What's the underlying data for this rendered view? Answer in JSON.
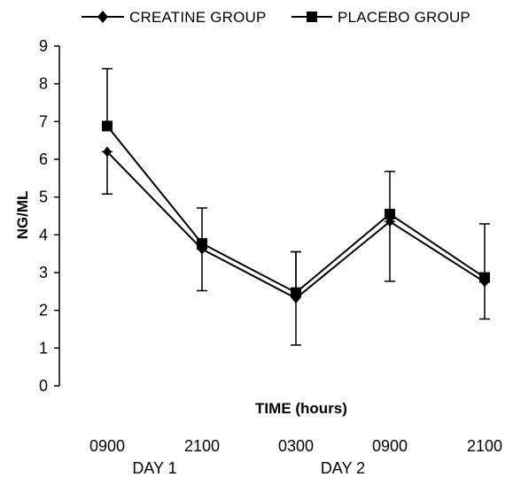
{
  "chart_data": {
    "type": "line",
    "title": "",
    "xlabel": "TIME (hours)",
    "ylabel": "NG/ML",
    "ylim": [
      0,
      9
    ],
    "yticks": [
      "0",
      "1",
      "2",
      "3",
      "4",
      "5",
      "6",
      "7",
      "8",
      "9"
    ],
    "categories": [
      "0900",
      "2100",
      "0300",
      "0900",
      "2100"
    ],
    "day_labels": [
      "DAY 1",
      "DAY 2"
    ],
    "grid": false,
    "legend_position": "top",
    "series": [
      {
        "name": "CREATINE GROUP",
        "marker": "diamond",
        "values": [
          6.2,
          3.62,
          2.32,
          4.35,
          2.75
        ],
        "error_low": [
          5.08,
          2.52,
          1.08,
          2.77,
          1.77
        ],
        "error_high": [
          6.2,
          3.62,
          3.55,
          4.35,
          2.75
        ]
      },
      {
        "name": "PLACEBO GROUP",
        "marker": "square",
        "values": [
          6.88,
          3.77,
          2.47,
          4.55,
          2.87
        ],
        "error_low": [
          6.88,
          3.77,
          2.47,
          4.55,
          2.87
        ],
        "error_high": [
          8.4,
          4.71,
          3.55,
          5.68,
          4.29
        ]
      }
    ]
  },
  "colors": {
    "line": "#000000",
    "background": "#ffffff"
  }
}
